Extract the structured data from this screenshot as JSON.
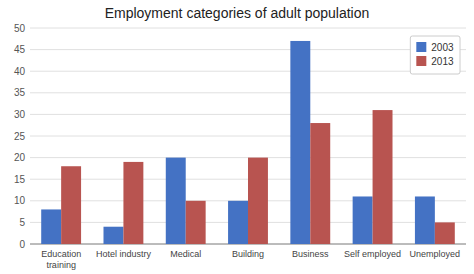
{
  "chart_data": {
    "type": "bar",
    "title": "Employment categories of adult population",
    "categories": [
      "Education\ntraining",
      "Hotel industry",
      "Medical",
      "Building",
      "Business",
      "Self employed",
      "Unemployed"
    ],
    "series": [
      {
        "name": "2003",
        "color": "#4472C4",
        "values": [
          8,
          4,
          20,
          10,
          47,
          11,
          11
        ]
      },
      {
        "name": "2013",
        "color": "#B85450",
        "values": [
          18,
          19,
          10,
          20,
          28,
          31,
          5
        ]
      }
    ],
    "ylim": [
      0,
      50
    ],
    "yticks": [
      0,
      5,
      10,
      15,
      20,
      25,
      30,
      35,
      40,
      45,
      50
    ],
    "grid": true,
    "legend": "upper right"
  }
}
